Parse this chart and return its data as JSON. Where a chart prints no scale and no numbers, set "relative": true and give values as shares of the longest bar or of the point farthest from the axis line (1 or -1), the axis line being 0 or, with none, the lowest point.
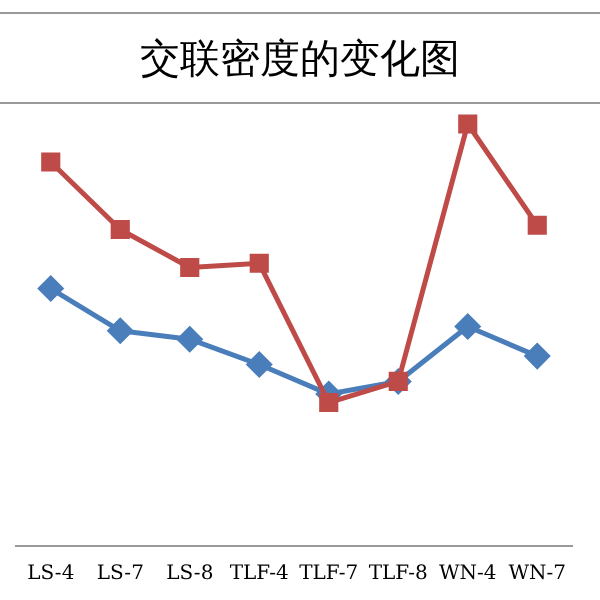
{
  "chart_data": {
    "type": "line",
    "title": "交联密度的变化图",
    "relative": true,
    "legend": false,
    "categories": [
      "LS-4",
      "LS-7",
      "LS-8",
      "TLF-4",
      "TLF-7",
      "TLF-8",
      "WN-4",
      "WN-7"
    ],
    "series": [
      {
        "color": "#4a7ebb",
        "marker": "diamond",
        "values": [
          0.61,
          0.51,
          0.49,
          0.43,
          0.36,
          0.39,
          0.52,
          0.45
        ]
      },
      {
        "color": "#be4b48",
        "marker": "square",
        "values": [
          0.91,
          0.75,
          0.66,
          0.67,
          0.34,
          0.39,
          1,
          0.76
        ]
      }
    ]
  }
}
